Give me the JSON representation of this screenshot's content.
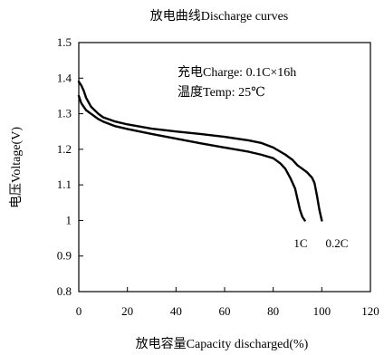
{
  "chart_data": {
    "type": "line",
    "title": "放电曲线Discharge curves",
    "xlabel": "放电容量Capacity discharged(%)",
    "ylabel": "电压Voltage(V)",
    "xlim": [
      0,
      120
    ],
    "ylim": [
      0.8,
      1.5
    ],
    "xticks": [
      "0",
      "20",
      "40",
      "60",
      "80",
      "100",
      "120"
    ],
    "yticks": [
      "0.8",
      "0.9",
      "1",
      "1.1",
      "1.2",
      "1.3",
      "1.4",
      "1.5"
    ],
    "xtick_values": [
      0,
      20,
      40,
      60,
      80,
      100,
      120
    ],
    "ytick_values": [
      0.8,
      0.9,
      1.0,
      1.1,
      1.2,
      1.3,
      1.4,
      1.5
    ],
    "grid": false,
    "annotations": [
      "充电Charge: 0.1C×16h",
      "温度Temp: 25℃"
    ],
    "series": [
      {
        "name": "1C",
        "x": [
          0,
          1,
          3,
          5,
          8,
          10,
          15,
          20,
          30,
          40,
          50,
          60,
          70,
          75,
          80,
          83,
          85,
          87,
          89,
          90,
          91,
          92,
          93
        ],
        "y": [
          1.35,
          1.33,
          1.31,
          1.3,
          1.285,
          1.278,
          1.265,
          1.257,
          1.243,
          1.23,
          1.217,
          1.205,
          1.193,
          1.185,
          1.175,
          1.16,
          1.145,
          1.12,
          1.09,
          1.06,
          1.03,
          1.01,
          1.0
        ]
      },
      {
        "name": "0.2C",
        "x": [
          0,
          1,
          2,
          3,
          5,
          8,
          10,
          15,
          20,
          30,
          40,
          50,
          60,
          70,
          75,
          80,
          85,
          88,
          90,
          92,
          94,
          96,
          97,
          98,
          99,
          100
        ],
        "y": [
          1.39,
          1.38,
          1.365,
          1.345,
          1.32,
          1.3,
          1.29,
          1.278,
          1.27,
          1.258,
          1.25,
          1.243,
          1.235,
          1.225,
          1.218,
          1.205,
          1.185,
          1.17,
          1.155,
          1.145,
          1.135,
          1.12,
          1.105,
          1.07,
          1.03,
          1.0
        ]
      }
    ]
  }
}
